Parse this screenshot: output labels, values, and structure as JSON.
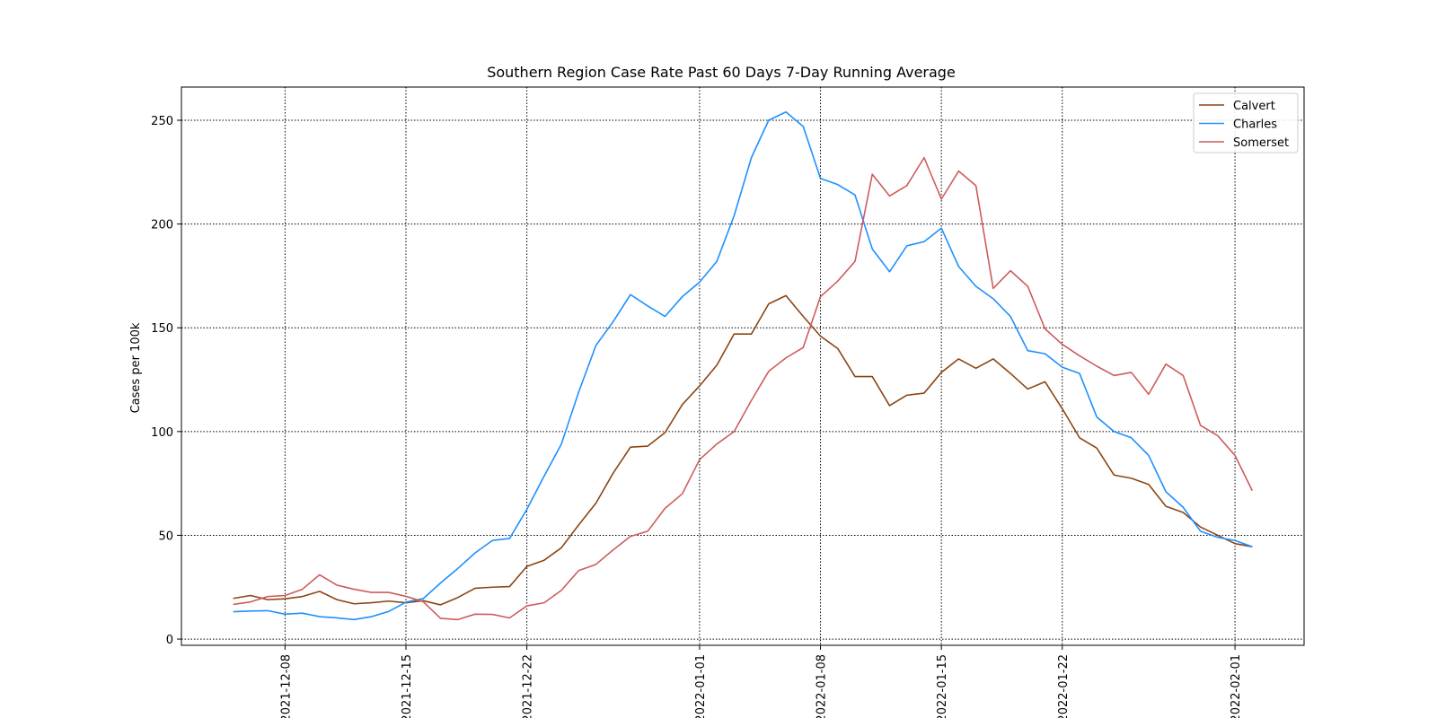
{
  "chart_data": {
    "type": "line",
    "title": "Southern Region Case Rate  Past 60 Days 7-Day Running Average",
    "xlabel": "",
    "ylabel": "Cases per 100k",
    "x_start": "2021-12-05",
    "x": [
      "2021-12-05",
      "2021-12-06",
      "2021-12-07",
      "2021-12-08",
      "2021-12-09",
      "2021-12-10",
      "2021-12-11",
      "2021-12-12",
      "2021-12-13",
      "2021-12-14",
      "2021-12-15",
      "2021-12-16",
      "2021-12-17",
      "2021-12-18",
      "2021-12-19",
      "2021-12-20",
      "2021-12-21",
      "2021-12-22",
      "2021-12-23",
      "2021-12-24",
      "2021-12-25",
      "2021-12-26",
      "2021-12-27",
      "2021-12-28",
      "2021-12-29",
      "2021-12-30",
      "2021-12-31",
      "2022-01-01",
      "2022-01-02",
      "2022-01-03",
      "2022-01-04",
      "2022-01-05",
      "2022-01-06",
      "2022-01-07",
      "2022-01-08",
      "2022-01-09",
      "2022-01-10",
      "2022-01-11",
      "2022-01-12",
      "2022-01-13",
      "2022-01-14",
      "2022-01-15",
      "2022-01-16",
      "2022-01-17",
      "2022-01-18",
      "2022-01-19",
      "2022-01-20",
      "2022-01-21",
      "2022-01-22",
      "2022-01-23",
      "2022-01-24",
      "2022-01-25",
      "2022-01-26",
      "2022-01-27",
      "2022-01-28",
      "2022-01-29",
      "2022-01-30",
      "2022-01-31",
      "2022-02-01",
      "2022-02-02"
    ],
    "xlim": [
      "2021-12-02",
      "2022-02-05"
    ],
    "ylim": [
      -3,
      266
    ],
    "x_ticks": [
      "2021-12-08",
      "2021-12-15",
      "2021-12-22",
      "2022-01-01",
      "2022-01-08",
      "2022-01-15",
      "2022-01-22",
      "2022-02-01"
    ],
    "y_ticks": [
      0,
      50,
      100,
      150,
      200,
      250
    ],
    "grid": true,
    "legend_position": "top-right",
    "series": [
      {
        "name": "Calvert",
        "color": "#8B4513",
        "values": [
          19.6,
          21,
          19,
          19.4,
          20.5,
          23,
          19,
          17,
          17.5,
          18.3,
          17.5,
          18.5,
          16.5,
          20,
          24.5,
          25,
          25.3,
          35,
          38,
          44,
          55,
          65.5,
          80,
          92.5,
          93,
          99.5,
          113,
          122,
          132,
          147,
          147,
          161.5,
          165.5,
          155.5,
          146,
          140,
          126.5,
          126.5,
          112.5,
          117.5,
          118.5,
          128.5,
          135,
          130.5,
          135,
          128,
          120.5,
          124,
          111,
          97,
          92,
          79,
          77.5,
          74.5,
          64,
          61,
          54,
          50,
          46,
          44.5
        ]
      },
      {
        "name": "Charles",
        "color": "#1E90FF",
        "values": [
          13.2,
          13.5,
          13.7,
          12,
          12.5,
          10.8,
          10.2,
          9.4,
          10.8,
          13.3,
          17.8,
          19.5,
          27,
          34,
          41.5,
          47.5,
          48.5,
          62.5,
          78.5,
          94,
          119,
          141.5,
          153,
          166,
          160.5,
          155.5,
          165,
          172,
          182,
          204,
          232,
          250,
          254,
          247,
          222,
          219,
          214,
          188,
          177,
          189.5,
          191.5,
          198,
          179.5,
          170,
          164,
          155.5,
          139,
          137.5,
          131,
          128,
          107,
          100,
          97,
          88.5,
          71,
          63.5,
          52,
          49,
          47.5,
          44.5
        ]
      },
      {
        "name": "Somerset",
        "color": "#CD5C5C",
        "values": [
          16.7,
          17.9,
          20.5,
          21,
          24,
          31,
          26,
          24,
          22.5,
          22.5,
          20.6,
          18,
          10,
          9.4,
          12,
          11.9,
          10.2,
          16,
          17.5,
          23.5,
          33,
          36,
          43,
          49.5,
          52,
          63,
          70,
          86.5,
          94,
          100,
          115,
          129,
          135.5,
          140.5,
          165,
          172.5,
          182,
          224,
          213.5,
          218.5,
          232,
          212,
          225.5,
          218.5,
          169,
          177.5,
          170,
          149.5,
          142,
          136.5,
          131.5,
          127,
          128.5,
          118,
          132.5,
          127,
          103,
          98,
          88.5,
          71.5
        ]
      }
    ]
  }
}
